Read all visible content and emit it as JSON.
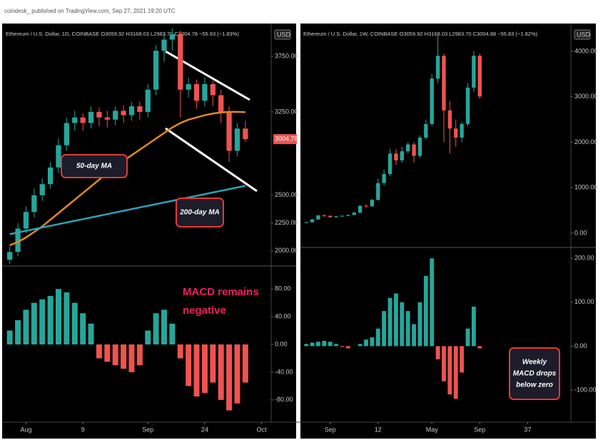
{
  "header": "coindesk_ published on TradingView.com, Sep 27, 2021 19:20 UTC",
  "chart_data": [
    {
      "type": "candlestick",
      "title": "Ethereum / U.S. Dollar, 1D, COINBASE  O3059.92 H3168.03 L2983.70 C3004.78 −55.93 (−1.83%)",
      "unit": "USD",
      "last_price": 3004.78,
      "xlim": [
        -0.5,
        32
      ],
      "ylim": [
        1870,
        4000
      ],
      "yticks": [
        {
          "value": 2000,
          "label": "2000.00"
        },
        {
          "value": 2250,
          "label": "2250.00"
        },
        {
          "value": 2500,
          "label": "2500.00"
        },
        {
          "value": 3250,
          "label": "3250.00"
        },
        {
          "value": 3750,
          "label": "3750.00"
        }
      ],
      "open": [
        1920,
        1990,
        2200,
        2350,
        2500,
        2600,
        2750,
        2950,
        3150,
        3200,
        3150,
        3250,
        3200,
        3180,
        3260,
        3220,
        3300,
        3250,
        3450,
        3800,
        3900,
        3950,
        3450,
        3500,
        3350,
        3500,
        3400,
        3250,
        2900,
        3100
      ],
      "high": [
        2040,
        2250,
        2400,
        2560,
        2650,
        2800,
        3010,
        3200,
        3260,
        3240,
        3300,
        3290,
        3260,
        3300,
        3310,
        3340,
        3340,
        3500,
        3850,
        3960,
        4000,
        3980,
        3560,
        3540,
        3560,
        3530,
        3450,
        3300,
        3150,
        3170
      ],
      "low": [
        1880,
        1950,
        2160,
        2300,
        2450,
        2560,
        2700,
        2900,
        3080,
        3080,
        3100,
        3120,
        3110,
        3130,
        3150,
        3170,
        3180,
        3200,
        3400,
        3700,
        3800,
        3200,
        3380,
        3280,
        3300,
        3300,
        3150,
        2800,
        2850,
        2980
      ],
      "close": [
        1990,
        2200,
        2350,
        2500,
        2600,
        2750,
        2950,
        3150,
        3200,
        3150,
        3250,
        3200,
        3180,
        3260,
        3220,
        3300,
        3250,
        3450,
        3800,
        3900,
        3950,
        3450,
        3500,
        3350,
        3500,
        3400,
        3250,
        2900,
        3100,
        3004.78
      ],
      "up_color": "#26a69a",
      "down_color": "#ef5350",
      "lines": [
        {
          "name": "50-day MA",
          "color": "#e08a1e",
          "values": [
            2050,
            2080,
            2120,
            2170,
            2220,
            2280,
            2340,
            2400,
            2460,
            2520,
            2580,
            2640,
            2700,
            2760,
            2810,
            2860,
            2910,
            2960,
            3010,
            3060,
            3110,
            3150,
            3180,
            3200,
            3220,
            3235,
            3245,
            3250,
            3250,
            3248
          ]
        },
        {
          "name": "200-day MA",
          "color": "#2aa3b8",
          "values": [
            2150,
            2165,
            2180,
            2195,
            2210,
            2225,
            2240,
            2255,
            2270,
            2285,
            2300,
            2315,
            2330,
            2345,
            2360,
            2375,
            2390,
            2405,
            2420,
            2435,
            2450,
            2465,
            2480,
            2495,
            2510,
            2525,
            2540,
            2555,
            2570,
            2585
          ]
        }
      ]
    },
    {
      "type": "bar",
      "annotation": [
        "MACD remains",
        "negative"
      ],
      "xlim": [
        -0.5,
        32
      ],
      "xticks": [
        {
          "value": 2,
          "label": "Aug"
        },
        9,
        {
          "value": 17,
          "label": "Sep"
        },
        24,
        {
          "value": 31,
          "label": "Oct"
        }
      ],
      "ylim": [
        -110,
        110
      ],
      "yticks": [
        {
          "value": 80,
          "label": "80.00"
        },
        {
          "value": 40,
          "label": "40.00"
        },
        {
          "value": 0,
          "label": "0.00"
        },
        {
          "value": -40,
          "label": "-40.00"
        },
        {
          "value": -80,
          "label": "-80.00"
        }
      ],
      "pos_color": "#26a69a",
      "neg_color": "#ef5350",
      "values": [
        20,
        35,
        50,
        60,
        65,
        70,
        80,
        75,
        60,
        45,
        30,
        -20,
        -25,
        -30,
        -35,
        -40,
        -30,
        20,
        45,
        50,
        30,
        -20,
        -60,
        -75,
        -70,
        -55,
        -80,
        -95,
        -85,
        -55
      ]
    },
    {
      "type": "candlestick",
      "title": "Ethereum / U.S. Dollar, 1W, COINBASE  O3059.92 H3168.03 L2983.70 C3004.88 −55.83 (−1.82%)",
      "unit": "USD",
      "xlim": [
        -0.5,
        44
      ],
      "ylim": [
        -300,
        4500
      ],
      "yticks": [
        {
          "value": 0,
          "label": "0.00"
        },
        {
          "value": 1000,
          "label": "1000.00"
        },
        {
          "value": 2000,
          "label": "2000.00"
        },
        {
          "value": 3000,
          "label": "3000.00"
        },
        {
          "value": 4000,
          "label": "4000.00"
        }
      ],
      "open": [
        230,
        240,
        300,
        390,
        380,
        350,
        370,
        380,
        400,
        450,
        600,
        590,
        730,
        1100,
        1300,
        1750,
        1600,
        1800,
        1950,
        1700,
        2100,
        2400,
        3400,
        3900,
        2700,
        2300,
        2100,
        2400,
        3200,
        3900
      ],
      "high": [
        250,
        320,
        400,
        410,
        390,
        380,
        390,
        410,
        470,
        620,
        640,
        750,
        1200,
        1400,
        1850,
        1850,
        1900,
        2000,
        2000,
        2150,
        2500,
        3500,
        4350,
        3950,
        2900,
        2500,
        2450,
        3300,
        4000,
        3950
      ],
      "low": [
        220,
        230,
        290,
        360,
        340,
        340,
        360,
        370,
        390,
        440,
        560,
        580,
        720,
        1050,
        1250,
        1500,
        1550,
        1750,
        1550,
        1650,
        2050,
        2350,
        3300,
        2000,
        1750,
        1900,
        2000,
        2350,
        3100,
        2950
      ],
      "close": [
        240,
        300,
        390,
        380,
        350,
        370,
        380,
        400,
        450,
        600,
        590,
        730,
        1100,
        1300,
        1750,
        1600,
        1800,
        1950,
        1700,
        2100,
        2400,
        3400,
        3900,
        2700,
        2300,
        2100,
        2400,
        3200,
        3900,
        3004.88
      ],
      "up_color": "#26a69a",
      "down_color": "#ef5350"
    },
    {
      "type": "bar",
      "annotation": [
        "Weekly",
        "MACD drops",
        "below zero"
      ],
      "xlim": [
        -0.5,
        44
      ],
      "xticks": [
        {
          "value": 4,
          "label": "Sep"
        },
        12,
        {
          "value": 21,
          "label": "May"
        },
        {
          "value": 29,
          "label": "Sep"
        },
        37
      ],
      "ylim": [
        -170,
        220
      ],
      "yticks": [
        {
          "value": 200,
          "label": "200.00"
        },
        {
          "value": 100,
          "label": "100.00"
        },
        {
          "value": 0,
          "label": "0.00"
        },
        {
          "value": -100,
          "label": "-100.00"
        }
      ],
      "pos_color": "#26a69a",
      "neg_color": "#ef5350",
      "values": [
        5,
        8,
        10,
        12,
        10,
        5,
        -2,
        -5,
        0,
        5,
        15,
        20,
        40,
        80,
        110,
        120,
        100,
        80,
        50,
        100,
        160,
        200,
        -30,
        -80,
        -110,
        -120,
        -60,
        40,
        90,
        -5
      ]
    }
  ]
}
